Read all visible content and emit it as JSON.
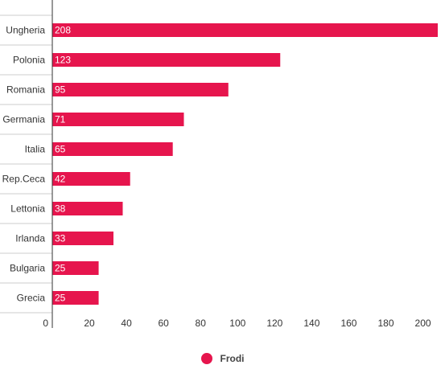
{
  "chart_data": {
    "type": "bar",
    "orientation": "horizontal",
    "categories": [
      "Ungheria",
      "Polonia",
      "Romania",
      "Germania",
      "Italia",
      "Rep.Ceca",
      "Lettonia",
      "Irlanda",
      "Bulgaria",
      "Grecia"
    ],
    "series": [
      {
        "name": "Frodi",
        "values": [
          208,
          123,
          95,
          71,
          65,
          42,
          38,
          33,
          25,
          25
        ],
        "color": "#e6154d"
      }
    ],
    "x_ticks": [
      0,
      20,
      40,
      60,
      80,
      100,
      120,
      140,
      160,
      180,
      200
    ],
    "xlim": [
      0,
      208
    ],
    "grid": false,
    "legend": "bottom-center"
  },
  "legend": {
    "label": "Frodi",
    "color": "#e6154d"
  }
}
